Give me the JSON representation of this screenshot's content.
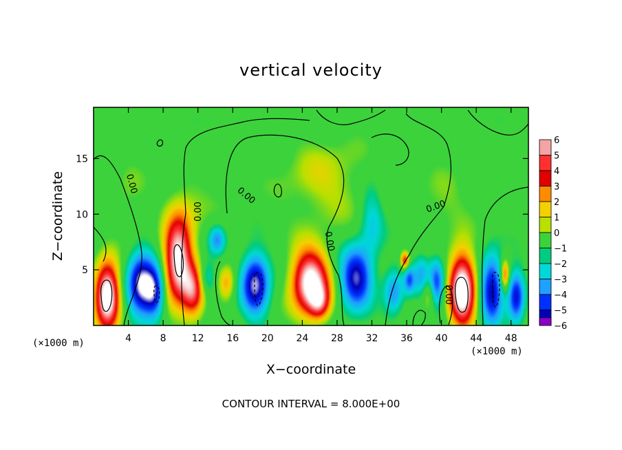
{
  "chart_data": {
    "type": "heatmap",
    "title": "vertical velocity",
    "xlabel": "X−coordinate",
    "ylabel": "Z−coordinate",
    "x_unit": "(×1000 m)",
    "x_ticks": [
      4,
      8,
      12,
      16,
      20,
      24,
      28,
      32,
      36,
      40,
      44,
      48
    ],
    "y_ticks": [
      5,
      10,
      15
    ],
    "xlim": [
      0,
      50
    ],
    "ylim": [
      0,
      19.6
    ],
    "colorbar": {
      "levels": [
        6,
        5,
        4,
        3,
        2,
        1,
        0,
        -1,
        -2,
        -3,
        -4,
        -5,
        -6
      ],
      "labels": [
        "6",
        "5",
        "4",
        "3",
        "2",
        "1",
        "0",
        "−1",
        "−2",
        "−3",
        "−4",
        "−5",
        "−6"
      ],
      "colors": [
        "#f4a4a4",
        "#ff3030",
        "#e00000",
        "#ff8c00",
        "#f5d000",
        "#b8e000",
        "#3cd23c",
        "#00cc80",
        "#00d8d8",
        "#20a0ff",
        "#0030ff",
        "#0000b8",
        "#8a00c8"
      ]
    },
    "contour_labels": [
      "0.00",
      "0.00",
      "0.00",
      "0.00",
      "0.00",
      "0.00"
    ],
    "contour_interval_text": "CONTOUR INTERVAL = 8.000E+00",
    "cells": [
      {
        "x": 1.6,
        "z": 2.7,
        "w": 8.5,
        "rx": 1.4,
        "rz": 3.0
      },
      {
        "x": 5.5,
        "z": 3.7,
        "w": -8.0,
        "rx": 1.5,
        "rz": 2.6
      },
      {
        "x": 7.0,
        "z": 3.0,
        "w": -5.5,
        "rx": 1.1,
        "rz": 2.2
      },
      {
        "x": 9.7,
        "z": 5.8,
        "w": 7.5,
        "rx": 1.6,
        "rz": 3.8
      },
      {
        "x": 11.5,
        "z": 3.0,
        "w": 5.0,
        "rx": 1.3,
        "rz": 2.4
      },
      {
        "x": 13.0,
        "z": 4.2,
        "w": -2.5,
        "rx": 1.0,
        "rz": 1.6
      },
      {
        "x": 14.2,
        "z": 7.7,
        "w": -3.5,
        "rx": 0.9,
        "rz": 1.2
      },
      {
        "x": 15.3,
        "z": 3.8,
        "w": 2.8,
        "rx": 1.0,
        "rz": 1.6
      },
      {
        "x": 18.6,
        "z": 3.7,
        "w": -7.5,
        "rx": 1.5,
        "rz": 2.6
      },
      {
        "x": 24.9,
        "z": 3.9,
        "w": 8.0,
        "rx": 2.1,
        "rz": 2.9
      },
      {
        "x": 26.0,
        "z": 2.0,
        "w": 3.5,
        "rx": 1.2,
        "rz": 1.5
      },
      {
        "x": 30.2,
        "z": 4.3,
        "w": -7.0,
        "rx": 1.7,
        "rz": 2.6
      },
      {
        "x": 32.0,
        "z": 9.5,
        "w": -2.2,
        "rx": 1.3,
        "rz": 3.5
      },
      {
        "x": 34.5,
        "z": 3.0,
        "w": -3.5,
        "rx": 1.1,
        "rz": 2.0
      },
      {
        "x": 35.8,
        "z": 5.8,
        "w": 4.5,
        "rx": 0.5,
        "rz": 0.8
      },
      {
        "x": 36.3,
        "z": 4.1,
        "w": -4.0,
        "rx": 0.6,
        "rz": 1.2
      },
      {
        "x": 37.7,
        "z": 4.5,
        "w": -3.0,
        "rx": 0.9,
        "rz": 1.8
      },
      {
        "x": 38.6,
        "z": 3.0,
        "w": 3.0,
        "rx": 0.8,
        "rz": 1.6
      },
      {
        "x": 39.4,
        "z": 3.8,
        "w": -5.5,
        "rx": 0.9,
        "rz": 2.0
      },
      {
        "x": 42.4,
        "z": 3.2,
        "w": 8.5,
        "rx": 1.5,
        "rz": 3.4
      },
      {
        "x": 45.8,
        "z": 3.2,
        "w": -6.5,
        "rx": 1.2,
        "rz": 3.0
      },
      {
        "x": 47.3,
        "z": 4.5,
        "w": 4.0,
        "rx": 0.5,
        "rz": 1.4
      },
      {
        "x": 48.6,
        "z": 2.6,
        "w": -6.0,
        "rx": 0.9,
        "rz": 2.2
      },
      {
        "x": 26.5,
        "z": 13.0,
        "w": 1.6,
        "rx": 5.0,
        "rz": 4.0
      },
      {
        "x": 11.0,
        "z": 10.5,
        "w": 1.2,
        "rx": 2.5,
        "rz": 3.0
      },
      {
        "x": 40.0,
        "z": 11.0,
        "w": 1.0,
        "rx": 3.0,
        "rz": 3.0
      },
      {
        "x": 4.0,
        "z": 12.0,
        "w": 0.8,
        "rx": 2.0,
        "rz": 3.0
      }
    ]
  }
}
